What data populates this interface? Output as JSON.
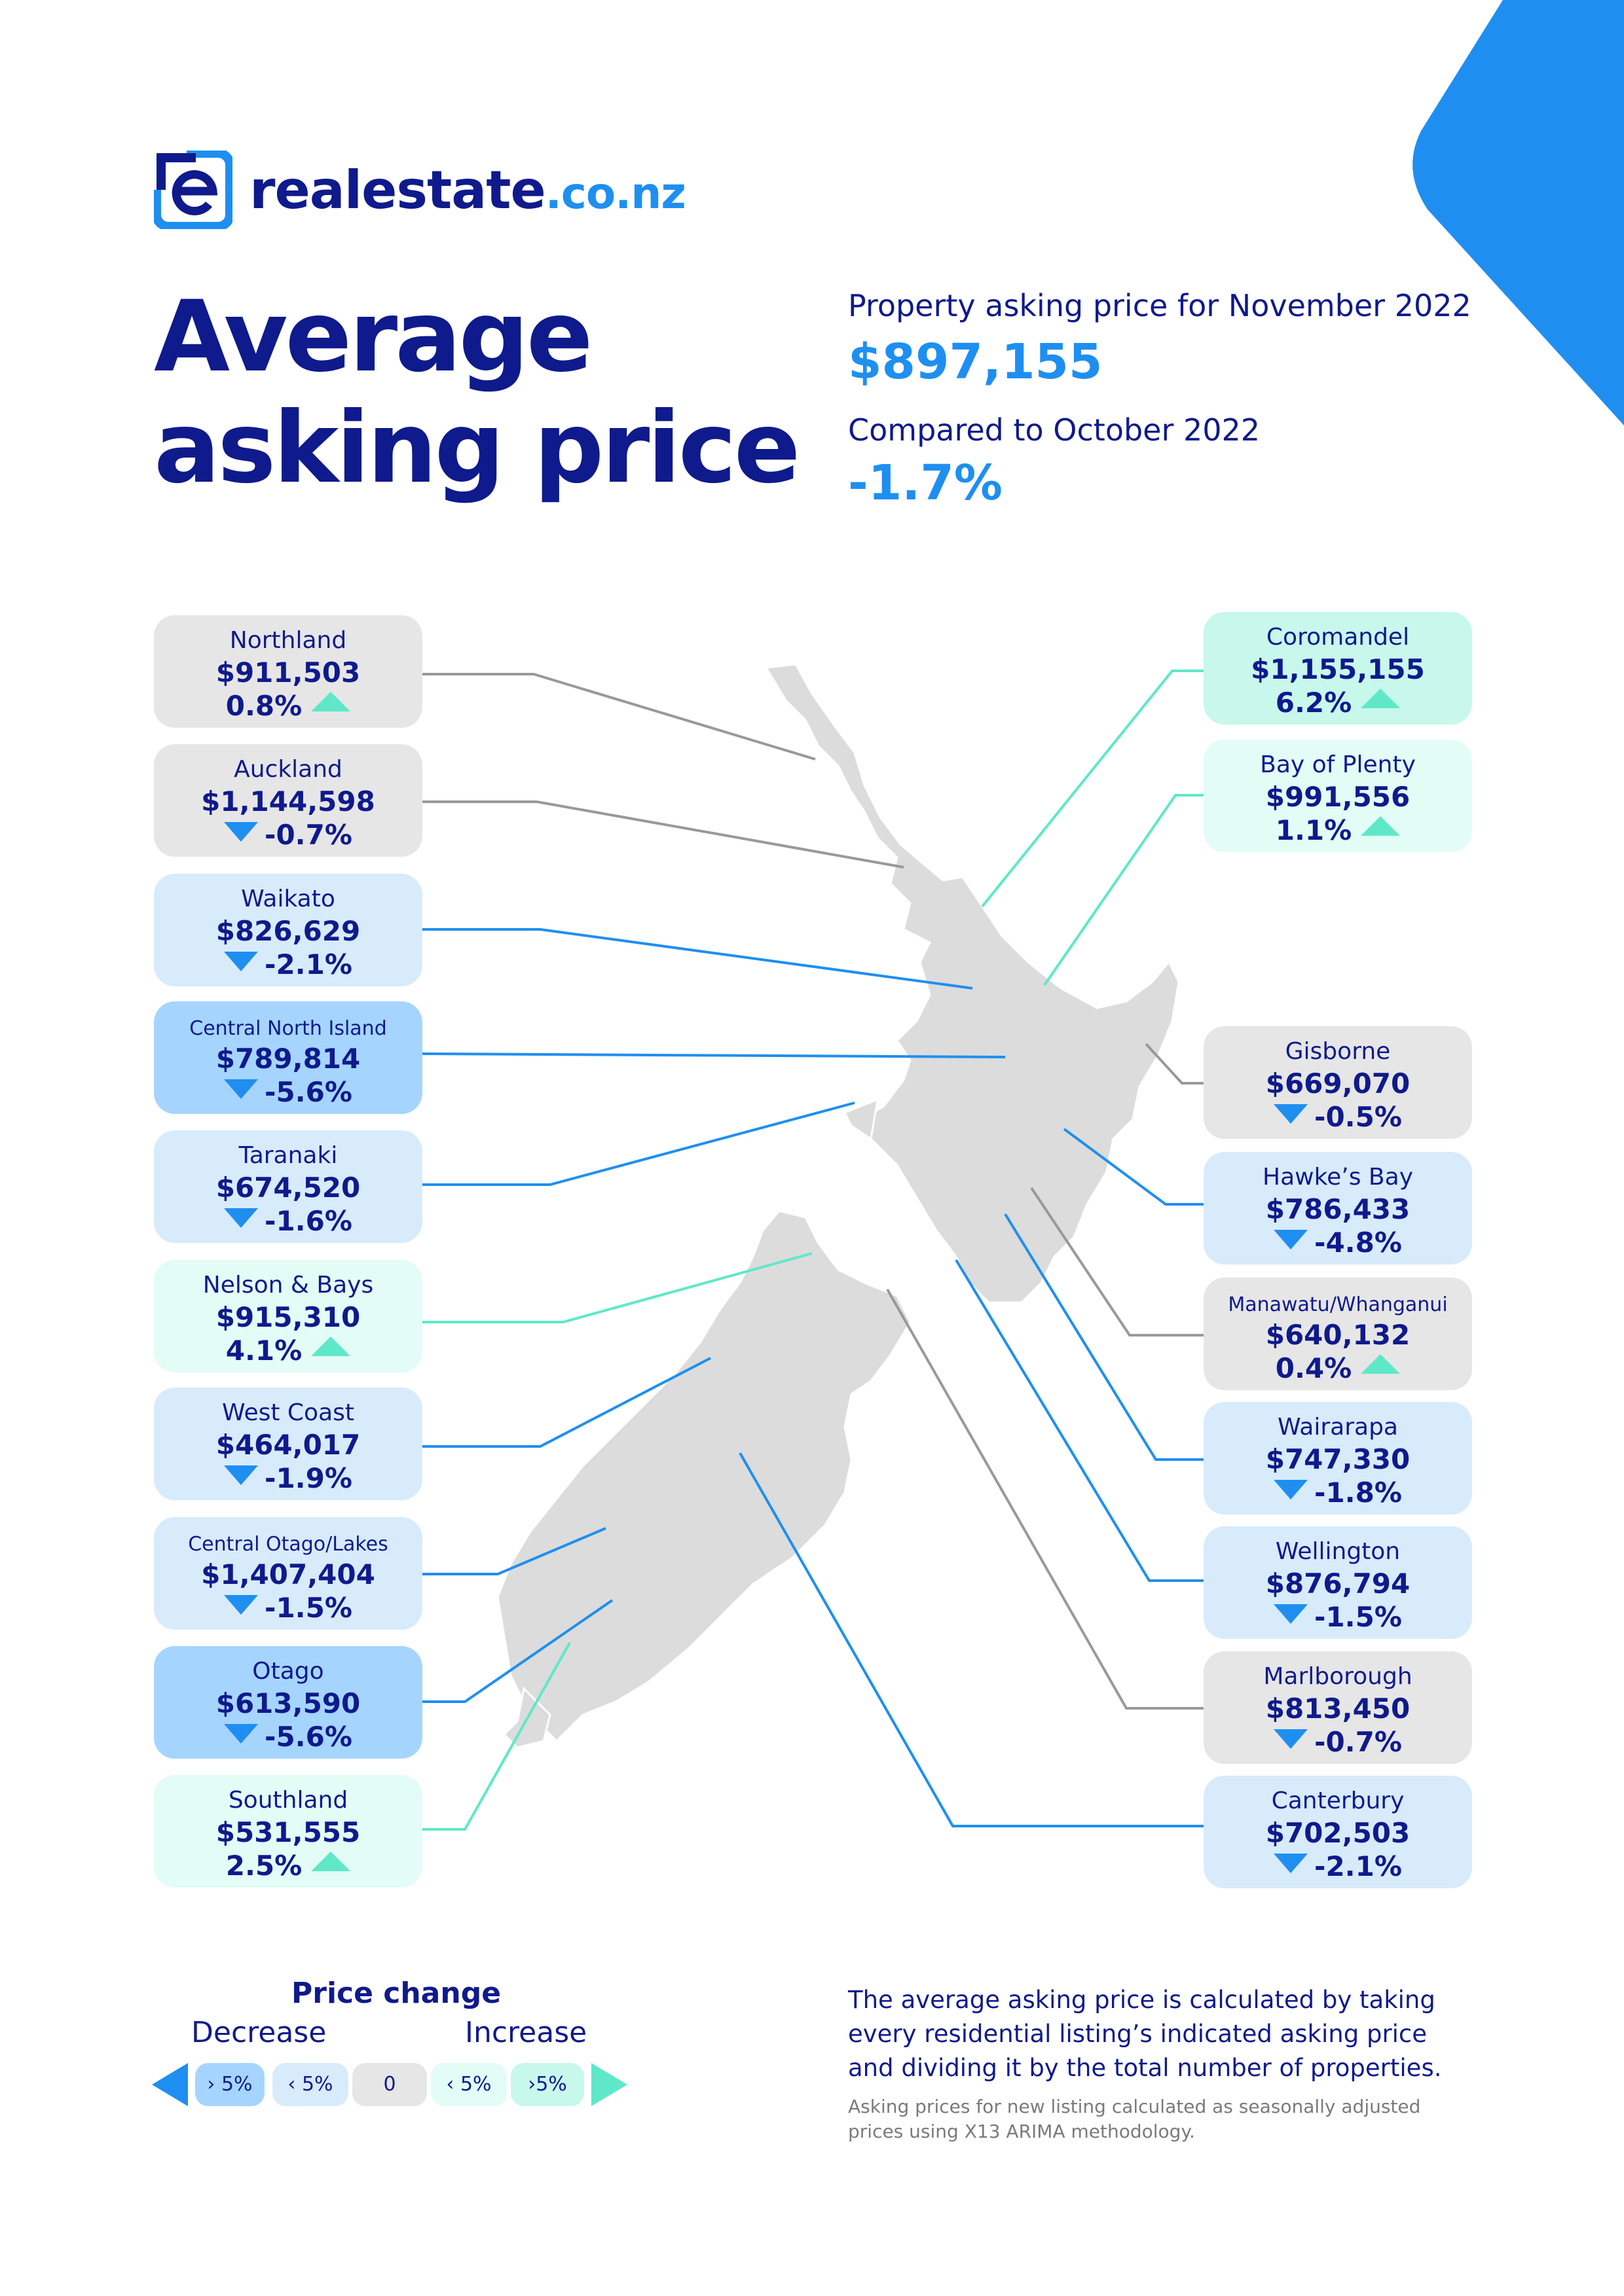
{
  "brand": {
    "name": "realestate",
    "tld": ".co.nz",
    "accent": "#1e8ff0",
    "navy": "#0f1a8c"
  },
  "title": {
    "line1": "Average",
    "line2": "asking price"
  },
  "summary": {
    "period_label": "Property asking price for November 2022",
    "value": "$897,155",
    "compare_label": "Compared to October 2022",
    "change": "-1.7%"
  },
  "regions": [
    {
      "name": "Northland",
      "price": "$911,503",
      "change": "0.8%",
      "direction": "up",
      "bucket": "0"
    },
    {
      "name": "Auckland",
      "price": "$1,144,598",
      "change": "-0.7%",
      "direction": "down",
      "bucket": "0"
    },
    {
      "name": "Waikato",
      "price": "$826,629",
      "change": "-2.1%",
      "direction": "down",
      "bucket": "dec-small"
    },
    {
      "name": "Central North Island",
      "price": "$789,814",
      "change": "-5.6%",
      "direction": "down",
      "bucket": "dec-large"
    },
    {
      "name": "Taranaki",
      "price": "$674,520",
      "change": "-1.6%",
      "direction": "down",
      "bucket": "dec-small"
    },
    {
      "name": "Nelson & Bays",
      "price": "$915,310",
      "change": "4.1%",
      "direction": "up",
      "bucket": "inc-small"
    },
    {
      "name": "West Coast",
      "price": "$464,017",
      "change": "-1.9%",
      "direction": "down",
      "bucket": "dec-small"
    },
    {
      "name": "Central Otago/Lakes",
      "price": "$1,407,404",
      "change": "-1.5%",
      "direction": "down",
      "bucket": "dec-small"
    },
    {
      "name": "Otago",
      "price": "$613,590",
      "change": "-5.6%",
      "direction": "down",
      "bucket": "dec-large"
    },
    {
      "name": "Southland",
      "price": "$531,555",
      "change": "2.5%",
      "direction": "up",
      "bucket": "inc-small"
    },
    {
      "name": "Coromandel",
      "price": "$1,155,155",
      "change": "6.2%",
      "direction": "up",
      "bucket": "inc-large"
    },
    {
      "name": "Bay of Plenty",
      "price": "$991,556",
      "change": "1.1%",
      "direction": "up",
      "bucket": "inc-small"
    },
    {
      "name": "Gisborne",
      "price": "$669,070",
      "change": "-0.5%",
      "direction": "down",
      "bucket": "0"
    },
    {
      "name": "Hawke’s Bay",
      "price": "$786,433",
      "change": "-4.8%",
      "direction": "down",
      "bucket": "dec-small"
    },
    {
      "name": "Manawatu/Whanganui",
      "price": "$640,132",
      "change": "0.4%",
      "direction": "up",
      "bucket": "0"
    },
    {
      "name": "Wairarapa",
      "price": "$747,330",
      "change": "-1.8%",
      "direction": "down",
      "bucket": "dec-small"
    },
    {
      "name": "Wellington",
      "price": "$876,794",
      "change": "-1.5%",
      "direction": "down",
      "bucket": "dec-small"
    },
    {
      "name": "Marlborough",
      "price": "$813,450",
      "change": "-0.7%",
      "direction": "down",
      "bucket": "0"
    },
    {
      "name": "Canterbury",
      "price": "$702,503",
      "change": "-2.1%",
      "direction": "down",
      "bucket": "dec-small"
    }
  ],
  "legend": {
    "title": "Price change",
    "decrease_label": "Decrease",
    "increase_label": "Increase",
    "pills": [
      "› 5%",
      "‹ 5%",
      "0",
      "‹ 5%",
      "›5%"
    ]
  },
  "colors": {
    "dec-large": "#a5d5ff",
    "dec-small": "#d7ebfb",
    "0": "#e6e6e6",
    "inc-small": "#e3fcf6",
    "inc-large": "#c8f7ec",
    "up_arrow": "#5fe8c8",
    "down_arrow": "#1e8ff0"
  },
  "note": "The average asking price is calculated by taking every residential listing’s indicated asking price and dividing it by the total number of properties.",
  "fineprint": "Asking prices for new listing calculated as seasonally adjusted prices using X13 ARIMA methodology."
}
